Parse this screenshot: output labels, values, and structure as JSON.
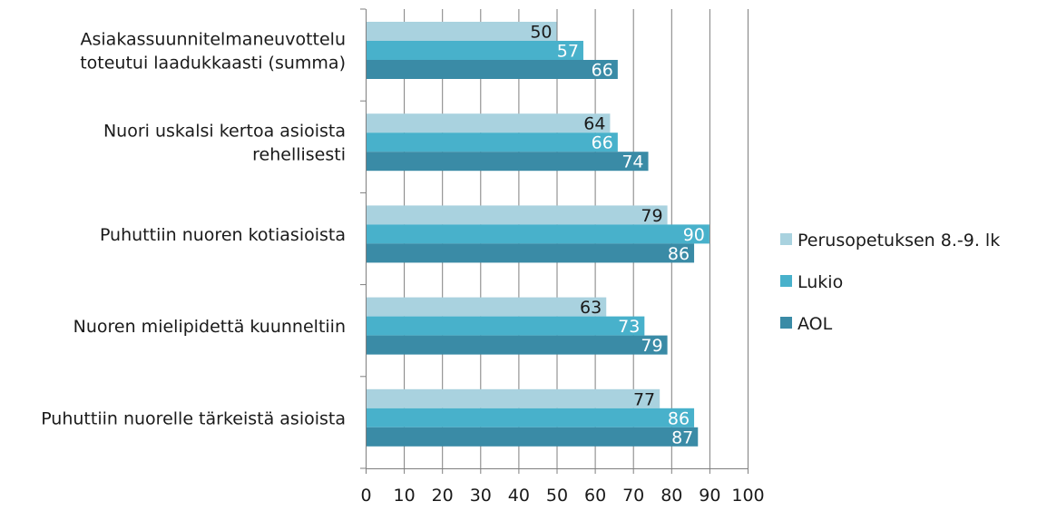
{
  "chart_data": {
    "type": "bar",
    "orientation": "horizontal",
    "title": "",
    "xlabel": "",
    "ylabel": "",
    "xlim": [
      0,
      100
    ],
    "x_ticks": [
      0,
      10,
      20,
      30,
      40,
      50,
      60,
      70,
      80,
      90,
      100
    ],
    "grid": "vertical major gridlines",
    "legend_position": "right",
    "categories": [
      [
        "Asiakassuunnitelmaneuvottelu",
        "toteutui laadukkaasti (summa)"
      ],
      [
        "Nuori uskalsi kertoa asioista",
        "rehellisesti"
      ],
      [
        "Puhuttiin nuoren kotiasioista"
      ],
      [
        "Nuoren mielipidettä kuunneltiin"
      ],
      [
        "Puhuttiin nuorelle tärkeistä asioista"
      ]
    ],
    "series": [
      {
        "name": "Perusopetuksen 8.-9. lk",
        "color": "#a9d2df",
        "label_color": "#1a1a1a",
        "values": [
          50,
          64,
          79,
          63,
          77
        ]
      },
      {
        "name": "Lukio",
        "color": "#48b1cb",
        "label_color": "#ffffff",
        "values": [
          57,
          66,
          90,
          73,
          86
        ]
      },
      {
        "name": "AOL",
        "color": "#3a8ba6",
        "label_color": "#ffffff",
        "values": [
          66,
          74,
          86,
          79,
          87
        ]
      }
    ]
  }
}
